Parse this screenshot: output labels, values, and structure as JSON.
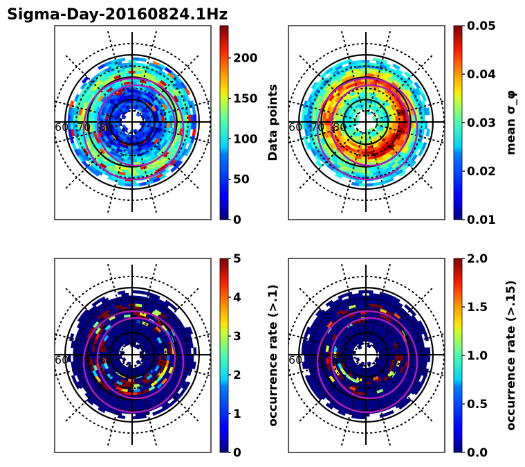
{
  "figure": {
    "title": "Sigma-Day-20160824.1Hz"
  },
  "chart_data": [
    {
      "type": "heatmap",
      "projection": "polar (magnetic latitude / MLT)",
      "title": "",
      "colorbar": {
        "label": "Data points",
        "range": [
          0,
          240
        ],
        "ticks": [
          0,
          50,
          100,
          150,
          200
        ],
        "tick_labels": [
          "0",
          "50",
          "100",
          "150",
          "200"
        ],
        "colormap": "jet"
      },
      "lat_labels": [
        "60",
        "70",
        "80"
      ],
      "solid_circles_lat": [
        60,
        70,
        80
      ],
      "dotted_circles_lat": [
        55,
        65,
        75,
        85
      ],
      "description": "Mostly blue/cyan coverage (~0-120 points) in a ring 60-85 MLAT, with yellow/orange/red bins (~150-230) around 65-75 MLAT on the dawn/dusk sides",
      "ring_fill": "mixed"
    },
    {
      "type": "heatmap",
      "projection": "polar (magnetic latitude / MLT)",
      "title": "",
      "colorbar": {
        "label": "mean σ_φ",
        "range": [
          0.01,
          0.05
        ],
        "ticks": [
          0.01,
          0.02,
          0.03,
          0.04,
          0.05
        ],
        "tick_labels": [
          "0.01",
          "0.02",
          "0.03",
          "0.04",
          "0.05"
        ],
        "colormap": "jet"
      },
      "lat_labels": [
        "60",
        "70",
        "80"
      ],
      "solid_circles_lat": [
        60,
        70,
        80
      ],
      "dotted_circles_lat": [
        55,
        65,
        75,
        85
      ],
      "description": "Cyan/green (~0.025-0.03) at lower latitudes; dark red (>=0.05) bins concentrated in the auroral oval 70-80 MLAT, strongest post-noon and dawn",
      "ring_fill": "sigma"
    },
    {
      "type": "heatmap",
      "projection": "polar (magnetic latitude / MLT)",
      "title": "",
      "colorbar": {
        "label": "occurrence rate (>.1)",
        "range": [
          0,
          5
        ],
        "ticks": [
          0,
          1,
          2,
          3,
          4,
          5
        ],
        "tick_labels": [
          "0",
          "1",
          "2",
          "3",
          "4",
          "5"
        ],
        "colormap": "jet"
      },
      "lat_labels": [
        "60",
        "70",
        "80"
      ],
      "solid_circles_lat": [
        60,
        70,
        80
      ],
      "dotted_circles_lat": [
        55,
        65,
        75,
        85
      ],
      "description": "Mostly dark blue (0) with scattered dark red (>=5) bins inside the auroral oval",
      "ring_fill": "occ1"
    },
    {
      "type": "heatmap",
      "projection": "polar (magnetic latitude / MLT)",
      "title": "",
      "colorbar": {
        "label": "occurrence rate (>.15)",
        "range": [
          0.0,
          2.0
        ],
        "ticks": [
          0.0,
          0.5,
          1.0,
          1.5,
          2.0
        ],
        "tick_labels": [
          "0.0",
          "0.5",
          "1.0",
          "1.5",
          "2.0"
        ],
        "colormap": "jet"
      },
      "lat_labels": [
        "60",
        "70",
        "80"
      ],
      "solid_circles_lat": [
        60,
        70,
        80
      ],
      "dotted_circles_lat": [
        55,
        65,
        75,
        85
      ],
      "description": "Mostly dark blue (0) with sparse dark red (>=2) bins near the auroral oval, dawn side",
      "ring_fill": "occ2"
    }
  ],
  "colors": {
    "oval_line": "#b01cb8",
    "grid_line": "#000000"
  }
}
